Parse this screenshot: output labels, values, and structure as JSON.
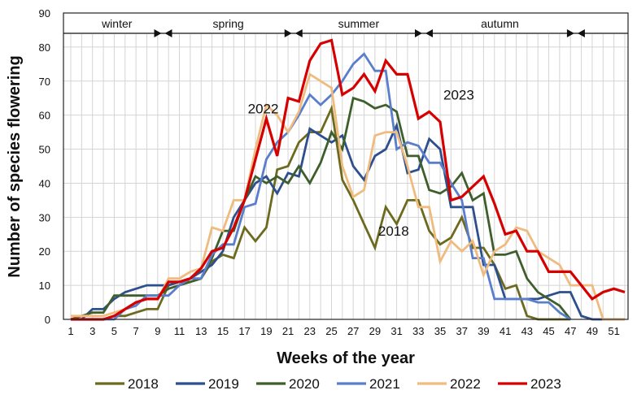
{
  "chart_data": {
    "type": "line",
    "title": "",
    "xlabel": "Weeks of the year",
    "ylabel": "Number of species flowering",
    "xlim": [
      1,
      52
    ],
    "ylim": [
      0,
      90
    ],
    "yticks": [
      0,
      10,
      20,
      30,
      40,
      50,
      60,
      70,
      80,
      90
    ],
    "xticks": [
      1,
      3,
      5,
      7,
      9,
      11,
      13,
      15,
      17,
      19,
      21,
      23,
      25,
      27,
      29,
      31,
      33,
      35,
      37,
      39,
      41,
      43,
      45,
      47,
      49,
      51
    ],
    "grid": true,
    "legend_position": "bottom",
    "seasons": [
      {
        "label": "winter",
        "from": 1,
        "to": 9.5
      },
      {
        "label": "spring",
        "from": 9.5,
        "to": 21.5
      },
      {
        "label": "summer",
        "from": 21.5,
        "to": 33.5
      },
      {
        "label": "autumn",
        "from": 33.5,
        "to": 47.5
      },
      {
        "label": "",
        "from": 47.5,
        "to": 52
      }
    ],
    "annotations": [
      {
        "text": "2022",
        "x": 17,
        "y": 62
      },
      {
        "text": "2023",
        "x": 35,
        "y": 66
      },
      {
        "text": "2018",
        "x": 29,
        "y": 26
      }
    ],
    "x": [
      1,
      2,
      3,
      4,
      5,
      6,
      7,
      8,
      9,
      10,
      11,
      12,
      13,
      14,
      15,
      16,
      17,
      18,
      19,
      20,
      21,
      22,
      23,
      24,
      25,
      26,
      27,
      28,
      29,
      30,
      31,
      32,
      33,
      34,
      35,
      36,
      37,
      38,
      39,
      40,
      41,
      42,
      43,
      44,
      45,
      46,
      47,
      48,
      49,
      50,
      51,
      52
    ],
    "series": [
      {
        "name": "2018",
        "color": "#6b6a1e",
        "values": [
          0,
          0,
          0,
          0,
          1,
          1,
          2,
          3,
          3,
          10,
          11,
          11,
          12,
          17,
          19,
          18,
          27,
          23,
          27,
          44,
          45,
          52,
          55,
          55,
          62,
          41,
          35,
          28,
          21,
          33,
          28,
          35,
          35,
          26,
          22,
          24,
          30,
          21,
          21,
          16,
          9,
          10,
          1,
          0,
          0,
          0,
          0,
          null,
          null,
          null,
          null,
          null
        ]
      },
      {
        "name": "2019",
        "color": "#2e4f8e",
        "values": [
          0,
          0,
          3,
          3,
          6,
          8,
          9,
          10,
          10,
          10,
          11,
          12,
          14,
          16,
          20,
          30,
          35,
          40,
          42,
          37,
          43,
          42,
          56,
          54,
          52,
          54,
          45,
          41,
          48,
          50,
          57,
          43,
          44,
          53,
          50,
          33,
          33,
          33,
          16,
          16,
          6,
          6,
          6,
          6,
          7,
          8,
          8,
          1,
          0,
          0,
          0,
          0
        ]
      },
      {
        "name": "2020",
        "color": "#3e5e2c",
        "values": [
          0,
          1,
          2,
          2,
          7,
          7,
          7,
          7,
          7,
          9,
          10,
          11,
          12,
          18,
          26,
          26,
          35,
          42,
          40,
          42,
          40,
          45,
          40,
          46,
          55,
          50,
          65,
          64,
          62,
          63,
          61,
          48,
          48,
          38,
          37,
          39,
          43,
          35,
          37,
          19,
          19,
          20,
          12,
          8,
          6,
          4,
          0,
          null,
          null,
          null,
          null,
          null
        ]
      },
      {
        "name": "2021",
        "color": "#5a7ecc",
        "values": [
          0,
          0,
          0,
          0,
          0,
          3,
          4,
          7,
          7,
          7,
          10,
          12,
          12,
          19,
          22,
          22,
          33,
          34,
          47,
          52,
          55,
          60,
          66,
          63,
          66,
          70,
          75,
          78,
          73,
          73,
          50,
          52,
          51,
          46,
          46,
          40,
          35,
          18,
          18,
          6,
          6,
          6,
          6,
          5,
          5,
          2,
          0,
          null,
          null,
          null,
          null,
          null
        ]
      },
      {
        "name": "2022",
        "color": "#f0bb7e",
        "values": [
          1,
          1,
          1,
          1,
          2,
          3,
          5,
          6,
          6,
          12,
          12,
          14,
          15,
          27,
          26,
          35,
          35,
          50,
          63,
          60,
          55,
          61,
          72,
          70,
          68,
          45,
          36,
          38,
          54,
          55,
          55,
          45,
          33,
          33,
          17,
          23,
          20,
          23,
          13,
          20,
          22,
          27,
          26,
          20,
          18,
          16,
          10,
          10,
          10,
          0,
          0,
          0
        ]
      },
      {
        "name": "2023",
        "color": "#d50000",
        "values": [
          0,
          0,
          0,
          0,
          1,
          3,
          5,
          6,
          6,
          11,
          11,
          12,
          15,
          20,
          21,
          27,
          35,
          47,
          59,
          48,
          65,
          64,
          76,
          81,
          82,
          66,
          68,
          72,
          67,
          76,
          72,
          72,
          59,
          61,
          58,
          35,
          36,
          39,
          42,
          34,
          25,
          26,
          20,
          20,
          14,
          14,
          14,
          10,
          6,
          8,
          9,
          8
        ]
      }
    ]
  }
}
